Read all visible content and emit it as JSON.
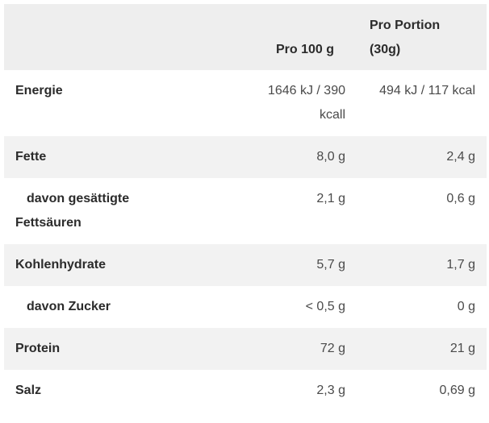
{
  "header": {
    "col_per100": "Pro 100 g",
    "col_portion_line1": "Pro Portion",
    "col_portion_line2": "(30g)"
  },
  "rows": [
    {
      "label": "Energie",
      "per100_line1": "1646 kJ / 390",
      "per100_line2": "kcall",
      "portion": "494 kJ / 117 kcal"
    },
    {
      "label": "Fette",
      "per100": "8,0 g",
      "portion": "2,4 g"
    },
    {
      "label_line1": "davon gesättigte",
      "label_line2": "Fettsäuren",
      "per100": "2,1 g",
      "portion": "0,6 g"
    },
    {
      "label": "Kohlenhydrate",
      "per100": "5,7 g",
      "portion": "1,7 g"
    },
    {
      "label": "davon Zucker",
      "per100": "< 0,5 g",
      "portion": "0 g"
    },
    {
      "label": "Protein",
      "per100": "72 g",
      "portion": "21 g"
    },
    {
      "label": "Salz",
      "per100": "2,3 g",
      "portion": "0,69 g"
    }
  ]
}
